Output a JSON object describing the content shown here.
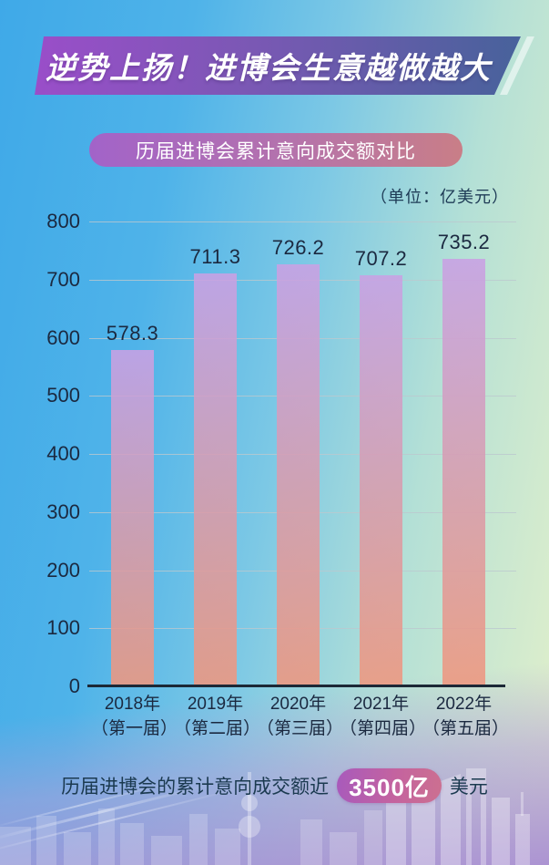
{
  "banner": {
    "title": "逆势上扬！进博会生意越做越大"
  },
  "subtitle_pill": {
    "text": "历届进博会累计意向成交额对比"
  },
  "unit_label": "（单位：亿美元）",
  "chart_data": {
    "type": "bar",
    "title": "历届进博会累计意向成交额对比",
    "unit": "（单位：亿美元）",
    "categories": [
      "2018年",
      "2019年",
      "2020年",
      "2021年",
      "2022年"
    ],
    "category_sublabels": [
      "（第一届）",
      "（第二届）",
      "（第三届）",
      "（第四届）",
      "（第五届）"
    ],
    "values": [
      578.3,
      711.3,
      726.2,
      707.2,
      735.2
    ],
    "xlabel": "",
    "ylabel": "",
    "ylim": [
      0,
      800
    ],
    "yticks": [
      0,
      100,
      200,
      300,
      400,
      500,
      600,
      700,
      800
    ],
    "grid": true,
    "legend": "none",
    "bar_color_top": "#c9a1e4",
    "bar_color_bottom": "#ee977f"
  },
  "footer": {
    "prefix": "历届进博会的累计意向成交额近",
    "highlight": "3500亿",
    "suffix": "美元"
  },
  "colors": {
    "background_blue": "#45afe9",
    "background_green": "#e3f0ca",
    "background_lavender": "#af9bd5",
    "banner_purple": "#9a4ec9",
    "banner_slate": "#47629b",
    "pill_purple": "#a263c9",
    "pill_salmon": "#c97e87",
    "text_dark": "#1b2940",
    "highlight_pill_start": "#a85abc",
    "highlight_pill_end": "#cc7090"
  }
}
